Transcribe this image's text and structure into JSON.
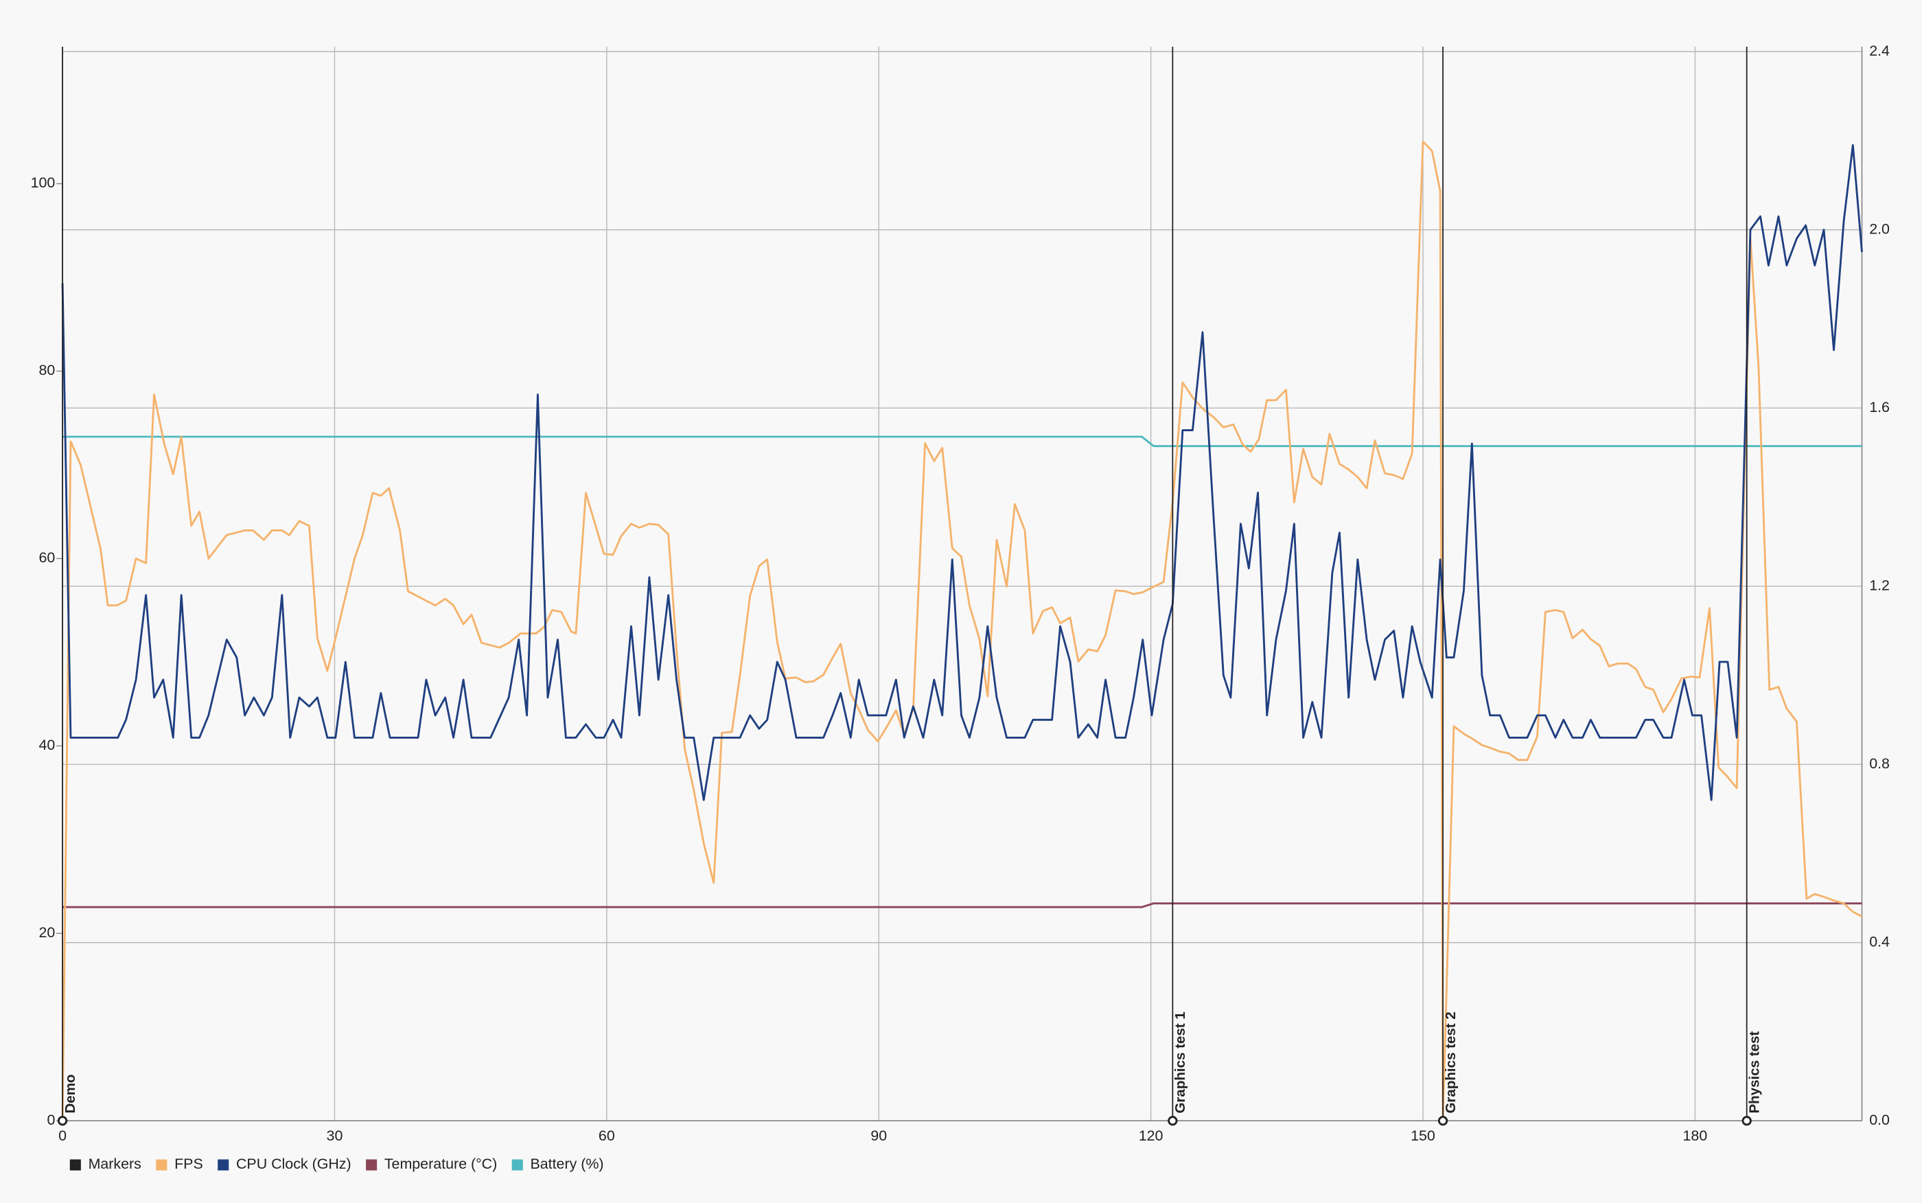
{
  "chart_data": {
    "type": "line",
    "xlim": [
      0,
      198.4
    ],
    "xticks": [
      0,
      30,
      60,
      90,
      120,
      150,
      180
    ],
    "ylim": [
      0,
      114.1
    ],
    "yticks": [
      0,
      20,
      40,
      60,
      80,
      100
    ],
    "y2lim": [
      0,
      2.4
    ],
    "y2ticks": [
      {
        "value": 0,
        "label": "0.0"
      },
      {
        "value": 0.4,
        "label": "0.4"
      },
      {
        "value": 0.8,
        "label": "0.8"
      },
      {
        "value": 1.2,
        "label": "1.2"
      },
      {
        "value": 1.6,
        "label": "1.6"
      },
      {
        "value": 2.0,
        "label": "2.0"
      },
      {
        "value": 2.4,
        "label": "2.4"
      }
    ],
    "grid": true,
    "legend": "bottom-left",
    "markers": {
      "name": "Markers",
      "color": "#222222",
      "items": [
        {
          "label": "Demo",
          "x": 0
        },
        {
          "label": "Graphics test 1",
          "x": 122.4
        },
        {
          "label": "Graphics test 2",
          "x": 152.2
        },
        {
          "label": "Physics test",
          "x": 185.7
        }
      ]
    },
    "series": [
      {
        "name": "FPS",
        "color": "#f5b36c",
        "axis": "y",
        "x": [
          0,
          0.9,
          2,
          4.2,
          5,
          6,
          7,
          8.1,
          9.2,
          10.1,
          11.2,
          12.2,
          13.1,
          14.2,
          15.1,
          16.1,
          18.1,
          20.1,
          21,
          22.2,
          23.1,
          24.2,
          25,
          26.1,
          27.2,
          28.1,
          29.2,
          30.1,
          32.2,
          33.1,
          34.2,
          35.1,
          36,
          37.2,
          38.1,
          40.1,
          41.1,
          42.2,
          43.1,
          44.2,
          45.1,
          46.2,
          48.2,
          49.2,
          50.5,
          52.2,
          53.1,
          54,
          55,
          56.1,
          56.6,
          57.7,
          59.7,
          60.7,
          61.6,
          62.7,
          63.6,
          64.7,
          65.7,
          66.8,
          67.7,
          68.6,
          69.6,
          70.7,
          71.8,
          72.7,
          73.8,
          74.7,
          75.8,
          76.8,
          77.7,
          78.8,
          79.7,
          80.9,
          81.9,
          82.8,
          83.9,
          84.9,
          85.8,
          86.9,
          87.8,
          88.8,
          89.9,
          90.8,
          91.9,
          92.8,
          93.8,
          95.1,
          96.1,
          97,
          98.1,
          99.1,
          100,
          101.1,
          102,
          103,
          104.1,
          105,
          106.1,
          107,
          108.1,
          109.1,
          110,
          111.1,
          112,
          113.1,
          114.1,
          115,
          116.1,
          117.2,
          118.1,
          119.1,
          120.1,
          121.4,
          122.4,
          123.5,
          124.6,
          125.7,
          126.9,
          128,
          129.1,
          130.1,
          131,
          131.9,
          132.8,
          133.8,
          134.9,
          135.8,
          136.8,
          137.8,
          138.8,
          139.7,
          140.8,
          141.8,
          142.8,
          143.8,
          144.7,
          145.8,
          146.8,
          147.8,
          148.8,
          150,
          151,
          151.9,
          152.2,
          153.4,
          154.5,
          155.4,
          156.5,
          157.4,
          158.5,
          159.5,
          160.5,
          161.5,
          162.6,
          163.5,
          164.6,
          165.5,
          166.5,
          167.6,
          168.5,
          169.5,
          170.5,
          171.5,
          172.6,
          173.5,
          174.5,
          175.4,
          176.5,
          177.4,
          178.5,
          179.5,
          180.5,
          181.6,
          182.6,
          183.5,
          184.6,
          186.1,
          187,
          188.2,
          189.2,
          190.1,
          191.2,
          192.3,
          193.2,
          194.2,
          195.3,
          196.4,
          197.4,
          198.4
        ],
        "values": [
          0,
          72.5,
          70,
          61,
          55,
          55,
          55.5,
          60,
          59.5,
          77.5,
          72.3,
          69,
          73,
          63.5,
          65,
          60,
          62.5,
          63,
          63,
          62,
          63,
          63,
          62.5,
          64,
          63.5,
          51.5,
          48,
          51.5,
          60,
          62.5,
          67,
          66.7,
          67.5,
          63,
          56.5,
          55.5,
          55,
          55.7,
          55,
          53,
          54,
          51,
          50.5,
          51,
          52,
          52,
          52.7,
          54.5,
          54.3,
          52.2,
          52,
          67,
          60.5,
          60.4,
          62.4,
          63.7,
          63.3,
          63.7,
          63.6,
          62.6,
          50.3,
          39.7,
          35.3,
          29.6,
          25.4,
          41.4,
          41.5,
          47.6,
          56,
          59.2,
          59.9,
          51.1,
          47.2,
          47.3,
          46.8,
          46.9,
          47.6,
          49.4,
          50.9,
          45.6,
          43.9,
          41.7,
          40.5,
          41.9,
          43.8,
          41.2,
          44,
          72.3,
          70.4,
          71.8,
          61.1,
          60.2,
          55,
          51.4,
          45.3,
          62,
          57,
          65.8,
          63,
          52,
          54.4,
          54.8,
          53.1,
          53.7,
          49,
          50.3,
          50.1,
          51.8,
          56.6,
          56.5,
          56.2,
          56.4,
          56.9,
          57.5,
          66,
          78.8,
          77.2,
          76,
          75.1,
          74,
          74.3,
          72.2,
          71.4,
          72.7,
          76.9,
          76.9,
          78,
          66,
          71.7,
          68.7,
          67.9,
          73.3,
          70.1,
          69.5,
          68.7,
          67.5,
          72.6,
          69.1,
          68.9,
          68.5,
          71.2,
          104.5,
          103.5,
          99.2,
          0,
          42.1,
          41.3,
          40.8,
          40.1,
          39.8,
          39.4,
          39.2,
          38.5,
          38.5,
          41,
          54.3,
          54.5,
          54.3,
          51.5,
          52.4,
          51.4,
          50.7,
          48.5,
          48.8,
          48.8,
          48.2,
          46.3,
          46,
          43.6,
          45,
          47.2,
          47.4,
          47.3,
          54.7,
          37.7,
          36.8,
          35.5,
          94.2,
          80.5,
          46,
          46.3,
          44,
          42.6,
          23.7,
          24.2,
          23.9,
          23.5,
          23.2,
          22.3,
          21.8
        ]
      },
      {
        "name": "CPU Clock (GHz)",
        "color": "#1f3f80",
        "axis": "y2",
        "x": [
          0,
          0.9,
          6.1,
          7.0,
          8.1,
          9.2,
          10.1,
          11.1,
          12.2,
          13.1,
          14.2,
          15.1,
          16.1,
          18.1,
          19.2,
          20.1,
          21.1,
          22.2,
          23.1,
          24.2,
          25.1,
          26.1,
          27.2,
          28.1,
          29.2,
          30.1,
          31.2,
          32.2,
          34.2,
          35.1,
          36.1,
          39.2,
          40.1,
          41.1,
          42.2,
          43.1,
          44.2,
          45.1,
          47.2,
          49.2,
          50.3,
          51.2,
          52.4,
          53.5,
          54.6,
          55.5,
          56.6,
          57.7,
          58.8,
          59.7,
          60.7,
          61.6,
          62.7,
          63.6,
          64.7,
          65.7,
          66.8,
          67.7,
          68.6,
          69.6,
          70.7,
          71.8,
          74.7,
          75.8,
          76.8,
          77.7,
          78.8,
          79.7,
          80.9,
          83.9,
          84.9,
          85.8,
          86.9,
          87.8,
          88.8,
          90.8,
          91.9,
          92.8,
          93.8,
          94.9,
          96.1,
          97.0,
          98.1,
          99.1,
          100.0,
          101.1,
          102.0,
          103.0,
          104.1,
          106.1,
          107.0,
          109.1,
          110.0,
          111.1,
          112.0,
          113.1,
          114.1,
          115.0,
          116.1,
          117.2,
          118.1,
          119.1,
          120.1,
          121.4,
          122.4,
          123.5,
          124.6,
          125.7,
          126.9,
          128.0,
          128.8,
          129.9,
          130.8,
          131.8,
          132.8,
          133.8,
          134.9,
          135.8,
          136.8,
          137.8,
          138.8,
          140.0,
          140.8,
          141.8,
          142.8,
          143.8,
          144.7,
          145.8,
          146.8,
          147.8,
          148.8,
          149.7,
          151.0,
          151.9,
          152.6,
          153.4,
          154.5,
          155.4,
          156.5,
          157.4,
          158.5,
          159.5,
          161.5,
          162.6,
          163.5,
          164.6,
          165.5,
          166.5,
          167.6,
          168.5,
          169.5,
          173.5,
          174.5,
          175.4,
          176.5,
          177.4,
          178.8,
          179.7,
          180.7,
          181.8,
          182.7,
          183.6,
          184.6,
          186.1,
          187.2,
          188.1,
          189.2,
          190.1,
          191.2,
          192.2,
          193.2,
          194.2,
          195.3,
          196.4,
          197.4,
          198.4
        ],
        "values": [
          1.88,
          0.86,
          0.86,
          0.9,
          0.99,
          1.18,
          0.95,
          0.99,
          0.86,
          1.18,
          0.86,
          0.86,
          0.91,
          1.08,
          1.04,
          0.91,
          0.95,
          0.91,
          0.95,
          1.18,
          0.86,
          0.95,
          0.93,
          0.95,
          0.86,
          0.86,
          1.03,
          0.86,
          0.86,
          0.96,
          0.86,
          0.86,
          0.99,
          0.91,
          0.95,
          0.86,
          0.99,
          0.86,
          0.86,
          0.95,
          1.08,
          0.91,
          1.63,
          0.95,
          1.08,
          0.86,
          0.86,
          0.89,
          0.86,
          0.86,
          0.9,
          0.86,
          1.11,
          0.91,
          1.22,
          0.99,
          1.18,
          0.99,
          0.86,
          0.86,
          0.72,
          0.86,
          0.86,
          0.91,
          0.88,
          0.9,
          1.03,
          0.99,
          0.86,
          0.86,
          0.91,
          0.96,
          0.86,
          0.99,
          0.91,
          0.91,
          0.99,
          0.86,
          0.93,
          0.86,
          0.99,
          0.91,
          1.26,
          0.91,
          0.86,
          0.95,
          1.11,
          0.95,
          0.86,
          0.86,
          0.9,
          0.9,
          1.11,
          1.03,
          0.86,
          0.89,
          0.86,
          0.99,
          0.86,
          0.86,
          0.95,
          1.08,
          0.91,
          1.08,
          1.16,
          1.55,
          1.55,
          1.77,
          1.36,
          1.0,
          0.95,
          1.34,
          1.24,
          1.41,
          0.91,
          1.08,
          1.19,
          1.34,
          0.86,
          0.94,
          0.86,
          1.23,
          1.32,
          0.95,
          1.26,
          1.08,
          0.99,
          1.08,
          1.1,
          0.95,
          1.11,
          1.03,
          0.95,
          1.26,
          1.04,
          1.04,
          1.19,
          1.52,
          1.0,
          0.91,
          0.91,
          0.86,
          0.86,
          0.91,
          0.91,
          0.86,
          0.9,
          0.86,
          0.86,
          0.9,
          0.86,
          0.86,
          0.9,
          0.9,
          0.86,
          0.86,
          0.99,
          0.91,
          0.91,
          0.72,
          1.03,
          1.03,
          0.86,
          2.0,
          2.03,
          1.92,
          2.03,
          1.92,
          1.98,
          2.01,
          1.92,
          2.0,
          1.73,
          2.02,
          2.19,
          1.95
        ]
      },
      {
        "name": "Temperature (°C)",
        "color": "#8b4456",
        "axis": "y",
        "x": [
          0,
          119,
          120.3,
          198.4
        ],
        "values": [
          22.8,
          22.8,
          23.2,
          23.2
        ]
      },
      {
        "name": "Battery (%)",
        "color": "#4cb8c0",
        "axis": "y",
        "x": [
          0,
          119,
          120.3,
          198.4
        ],
        "values": [
          73,
          73,
          72,
          72
        ]
      }
    ]
  }
}
